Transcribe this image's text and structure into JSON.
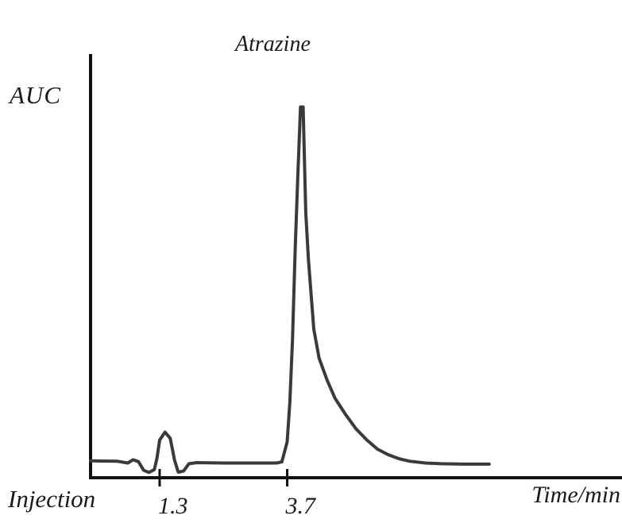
{
  "chart_data": {
    "type": "line",
    "title": "Atrazine",
    "ylabel": "AUC",
    "xlabel": "Time/min",
    "origin_label": "Injection",
    "xlim": [
      0,
      10
    ],
    "ylim": [
      0,
      100
    ],
    "x_ticks": [
      {
        "value": 1.3,
        "label": "1.3"
      },
      {
        "value": 3.7,
        "label": "3.7"
      }
    ],
    "grid": false,
    "series": [
      {
        "color": "#3a3a3a",
        "points": [
          [
            0.0,
            1.8
          ],
          [
            0.5,
            1.7
          ],
          [
            0.7,
            1.2
          ],
          [
            0.8,
            2.1
          ],
          [
            0.9,
            1.6
          ],
          [
            1.0,
            -0.8
          ],
          [
            1.1,
            -1.4
          ],
          [
            1.2,
            -0.6
          ],
          [
            1.25,
            2.5
          ],
          [
            1.3,
            7.5
          ],
          [
            1.4,
            9.7
          ],
          [
            1.5,
            8.0
          ],
          [
            1.58,
            2.0
          ],
          [
            1.65,
            -1.3
          ],
          [
            1.75,
            -1.0
          ],
          [
            1.85,
            1.0
          ],
          [
            2.0,
            1.3
          ],
          [
            2.5,
            1.2
          ],
          [
            3.0,
            1.2
          ],
          [
            3.5,
            1.2
          ],
          [
            3.6,
            1.5
          ],
          [
            3.7,
            7.0
          ],
          [
            3.75,
            18.0
          ],
          [
            3.8,
            35.0
          ],
          [
            3.85,
            60.0
          ],
          [
            3.9,
            80.0
          ],
          [
            3.95,
            99.0
          ],
          [
            4.0,
            99.0
          ],
          [
            4.05,
            70.0
          ],
          [
            4.1,
            57.0
          ],
          [
            4.2,
            38.0
          ],
          [
            4.3,
            30.0
          ],
          [
            4.45,
            24.0
          ],
          [
            4.6,
            19.0
          ],
          [
            4.8,
            14.5
          ],
          [
            5.0,
            10.5
          ],
          [
            5.2,
            7.5
          ],
          [
            5.4,
            5.0
          ],
          [
            5.6,
            3.5
          ],
          [
            5.8,
            2.4
          ],
          [
            6.0,
            1.7
          ],
          [
            6.3,
            1.2
          ],
          [
            6.6,
            1.0
          ],
          [
            7.0,
            0.9
          ],
          [
            7.5,
            0.9
          ]
        ]
      }
    ]
  }
}
